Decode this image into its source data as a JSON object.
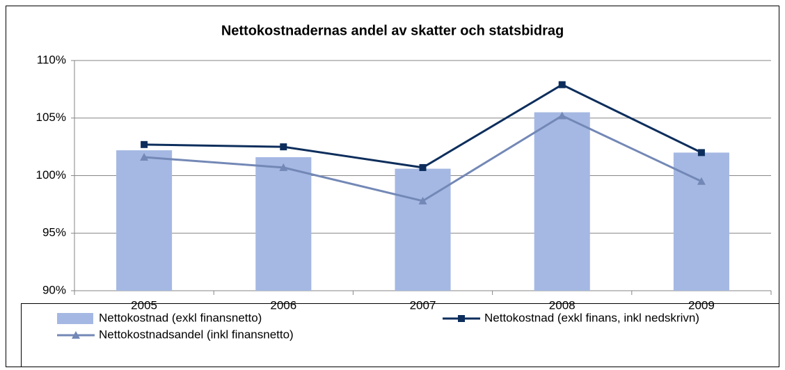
{
  "chart_data": {
    "type": "bar",
    "title": "Nettokostnadernas andel av skatter och statsbidrag",
    "categories": [
      "2005",
      "2006",
      "2007",
      "2008",
      "2009"
    ],
    "series": [
      {
        "name": "Nettokostnad (exkl finansnetto)",
        "type": "bar",
        "color": "#a5b8e3",
        "values": [
          102.2,
          101.6,
          100.6,
          105.5,
          102.0
        ]
      },
      {
        "name": "Nettokostnad (exkl finans, inkl nedskrivn)",
        "type": "line",
        "marker": "square",
        "color": "#0d2e5c",
        "values": [
          102.7,
          102.5,
          100.7,
          107.9,
          102.0
        ]
      },
      {
        "name": "Nettokostnadsandel (inkl finansnetto)",
        "type": "line",
        "marker": "triangle",
        "color": "#7388b6",
        "values": [
          101.6,
          100.7,
          97.8,
          105.2,
          99.5
        ]
      }
    ],
    "ylim": [
      90,
      110
    ],
    "yticks": [
      {
        "value": 90,
        "label": "90%"
      },
      {
        "value": 95,
        "label": "95%"
      },
      {
        "value": 100,
        "label": "100%"
      },
      {
        "value": 105,
        "label": "105%"
      },
      {
        "value": 110,
        "label": "110%"
      }
    ],
    "grid": true,
    "legend": "bottom"
  }
}
